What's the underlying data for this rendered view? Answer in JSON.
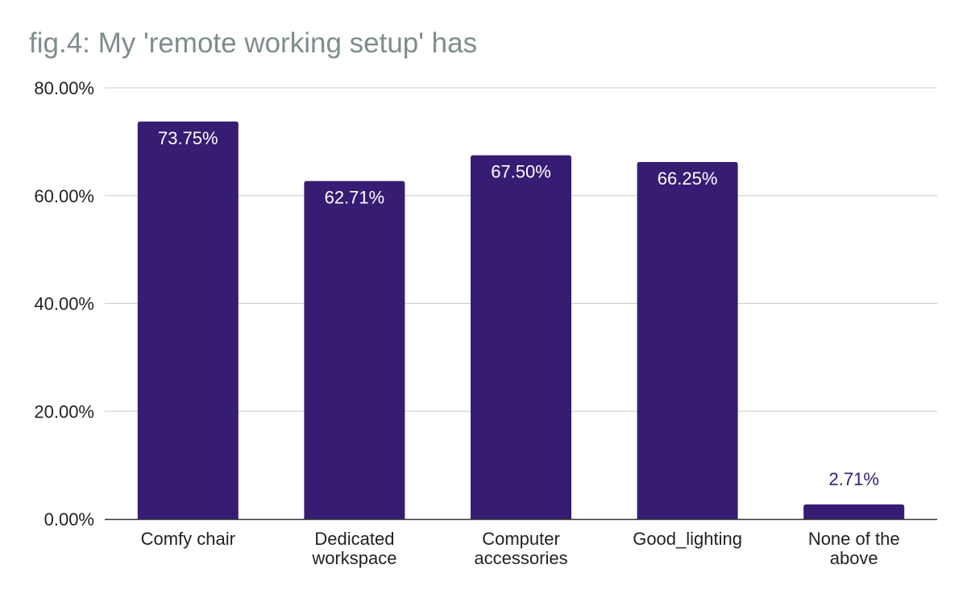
{
  "chart_data": {
    "type": "bar",
    "title": "fig.4: My 'remote working setup' has",
    "categories": [
      [
        "Comfy chair"
      ],
      [
        "Dedicated",
        "workspace"
      ],
      [
        "Computer",
        "accessories"
      ],
      [
        "Good_lighting"
      ],
      [
        "None of the",
        "above"
      ]
    ],
    "values": [
      73.75,
      62.71,
      67.5,
      66.25,
      2.71
    ],
    "data_labels": [
      "73.75%",
      "62.71%",
      "67.50%",
      "66.25%",
      "2.71%"
    ],
    "ylim": [
      0,
      80
    ],
    "yticks": [
      0,
      20,
      40,
      60,
      80
    ],
    "ytick_labels": [
      "0.00%",
      "20.00%",
      "40.00%",
      "60.00%",
      "80.00%"
    ],
    "xlabel": "",
    "ylabel": "",
    "grid": true,
    "legend": "none",
    "colors": {
      "bar": "#361d73",
      "title": "#7f8c8d",
      "grid": "#cccccc",
      "axis": "#333333",
      "text": "#222222",
      "label_inside": "#ffffff",
      "label_outside": "#361d73"
    }
  }
}
